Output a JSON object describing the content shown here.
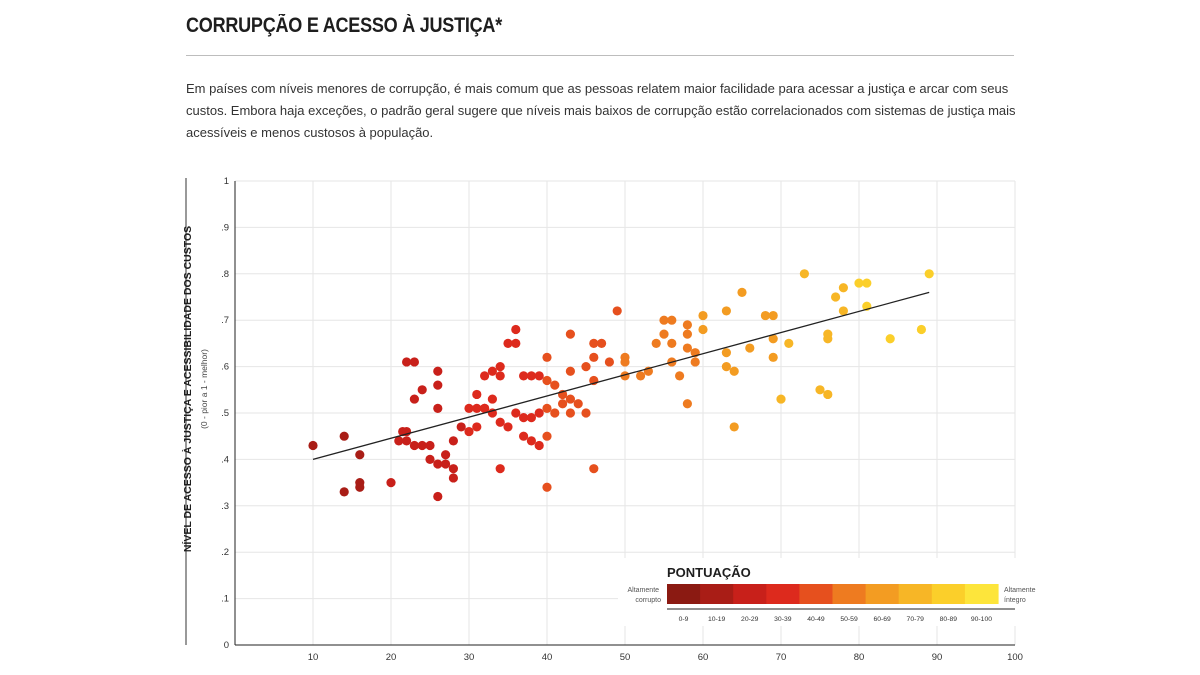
{
  "header": {
    "title": "CORRUPÇÃO E ACESSO À JUSTIÇA*",
    "description": "Em países com níveis menores de corrupção, é mais comum que as pessoas relatem maior facilidade para acessar a justiça e arcar com seus custos. Embora haja exceções, o padrão geral sugere que níveis mais baixos de corrupção estão correlacionados com sistemas de justiça mais acessíveis e menos custosos à população."
  },
  "chart_data": {
    "type": "scatter",
    "title": "",
    "xlabel": "",
    "ylabel": "NÍVEL DE ACESSO À JUSTIÇA E ACESSIBILIDADE DOS CUSTOS",
    "ylabel_sub": "(0 - pior a 1 - melhor)",
    "xlim": [
      0,
      100
    ],
    "ylim": [
      0,
      1
    ],
    "x_ticks": [
      10,
      20,
      30,
      40,
      50,
      60,
      70,
      80,
      90,
      100
    ],
    "y_ticks": [
      "0",
      ".1",
      ".2",
      ".3",
      ".4",
      ".5",
      ".6",
      ".7",
      ".8",
      ".9",
      "1"
    ],
    "grid": true,
    "trendline": {
      "x": [
        10,
        89
      ],
      "y": [
        0.4,
        0.76
      ]
    },
    "points": [
      [
        10,
        0.43
      ],
      [
        14,
        0.45
      ],
      [
        14,
        0.33
      ],
      [
        16,
        0.41
      ],
      [
        16,
        0.35
      ],
      [
        16,
        0.34
      ],
      [
        20,
        0.35
      ],
      [
        21,
        0.44
      ],
      [
        21.5,
        0.46
      ],
      [
        22,
        0.61
      ],
      [
        22,
        0.46
      ],
      [
        22,
        0.44
      ],
      [
        23,
        0.61
      ],
      [
        23,
        0.53
      ],
      [
        23,
        0.43
      ],
      [
        24,
        0.55
      ],
      [
        24,
        0.43
      ],
      [
        25,
        0.43
      ],
      [
        25,
        0.4
      ],
      [
        26,
        0.59
      ],
      [
        26,
        0.56
      ],
      [
        26,
        0.51
      ],
      [
        26,
        0.39
      ],
      [
        26,
        0.32
      ],
      [
        27,
        0.39
      ],
      [
        27,
        0.41
      ],
      [
        28,
        0.44
      ],
      [
        28,
        0.38
      ],
      [
        28,
        0.36
      ],
      [
        29,
        0.47
      ],
      [
        30,
        0.51
      ],
      [
        30,
        0.46
      ],
      [
        31,
        0.54
      ],
      [
        31,
        0.51
      ],
      [
        31,
        0.47
      ],
      [
        32,
        0.58
      ],
      [
        32,
        0.51
      ],
      [
        32,
        0.51
      ],
      [
        33,
        0.59
      ],
      [
        33,
        0.53
      ],
      [
        33,
        0.5
      ],
      [
        34,
        0.6
      ],
      [
        34,
        0.58
      ],
      [
        34,
        0.48
      ],
      [
        34,
        0.38
      ],
      [
        35,
        0.65
      ],
      [
        35,
        0.47
      ],
      [
        36,
        0.68
      ],
      [
        36,
        0.65
      ],
      [
        36,
        0.5
      ],
      [
        37,
        0.58
      ],
      [
        37,
        0.49
      ],
      [
        37,
        0.45
      ],
      [
        38,
        0.58
      ],
      [
        38,
        0.49
      ],
      [
        38,
        0.44
      ],
      [
        39,
        0.58
      ],
      [
        39,
        0.5
      ],
      [
        39,
        0.43
      ],
      [
        40,
        0.62
      ],
      [
        40,
        0.57
      ],
      [
        40,
        0.51
      ],
      [
        40,
        0.45
      ],
      [
        40,
        0.34
      ],
      [
        41,
        0.56
      ],
      [
        41,
        0.5
      ],
      [
        42,
        0.54
      ],
      [
        42,
        0.52
      ],
      [
        43,
        0.67
      ],
      [
        43,
        0.59
      ],
      [
        43,
        0.53
      ],
      [
        43,
        0.5
      ],
      [
        44,
        0.52
      ],
      [
        45,
        0.6
      ],
      [
        45,
        0.5
      ],
      [
        46,
        0.65
      ],
      [
        46,
        0.62
      ],
      [
        46,
        0.57
      ],
      [
        46,
        0.38
      ],
      [
        47,
        0.65
      ],
      [
        48,
        0.61
      ],
      [
        49,
        0.72
      ],
      [
        50,
        0.62
      ],
      [
        50,
        0.61
      ],
      [
        50,
        0.58
      ],
      [
        52,
        0.58
      ],
      [
        53,
        0.59
      ],
      [
        54,
        0.65
      ],
      [
        55,
        0.7
      ],
      [
        55,
        0.67
      ],
      [
        56,
        0.7
      ],
      [
        56,
        0.65
      ],
      [
        56,
        0.61
      ],
      [
        57,
        0.58
      ],
      [
        58,
        0.69
      ],
      [
        58,
        0.67
      ],
      [
        58,
        0.64
      ],
      [
        58,
        0.52
      ],
      [
        59,
        0.63
      ],
      [
        59,
        0.61
      ],
      [
        60,
        0.71
      ],
      [
        60,
        0.68
      ],
      [
        63,
        0.72
      ],
      [
        63,
        0.63
      ],
      [
        63,
        0.6
      ],
      [
        64,
        0.59
      ],
      [
        64,
        0.47
      ],
      [
        65,
        0.76
      ],
      [
        66,
        0.64
      ],
      [
        68,
        0.71
      ],
      [
        69,
        0.71
      ],
      [
        69,
        0.66
      ],
      [
        69,
        0.62
      ],
      [
        70,
        0.53
      ],
      [
        71,
        0.65
      ],
      [
        73,
        0.8
      ],
      [
        75,
        0.55
      ],
      [
        76,
        0.67
      ],
      [
        76,
        0.66
      ],
      [
        76,
        0.54
      ],
      [
        77,
        0.75
      ],
      [
        78,
        0.77
      ],
      [
        78,
        0.72
      ],
      [
        80,
        0.78
      ],
      [
        81,
        0.78
      ],
      [
        81,
        0.73
      ],
      [
        84,
        0.66
      ],
      [
        88,
        0.68
      ],
      [
        89,
        0.8
      ]
    ],
    "legend": {
      "title": "PONTUAÇÃO",
      "left_label": [
        "Altamente",
        "corrupto"
      ],
      "right_label": [
        "Altamente",
        "íntegro"
      ],
      "categories": [
        "0-9",
        "10-19",
        "20-29",
        "30-39",
        "40-49",
        "50-59",
        "60-69",
        "70-79",
        "80-89",
        "90-100"
      ],
      "colors": [
        "#8b1a12",
        "#a91d16",
        "#c8201a",
        "#dd2a1d",
        "#e6501e",
        "#ee7b20",
        "#f39c22",
        "#f7b626",
        "#fbcf2a",
        "#fde53b"
      ]
    }
  }
}
